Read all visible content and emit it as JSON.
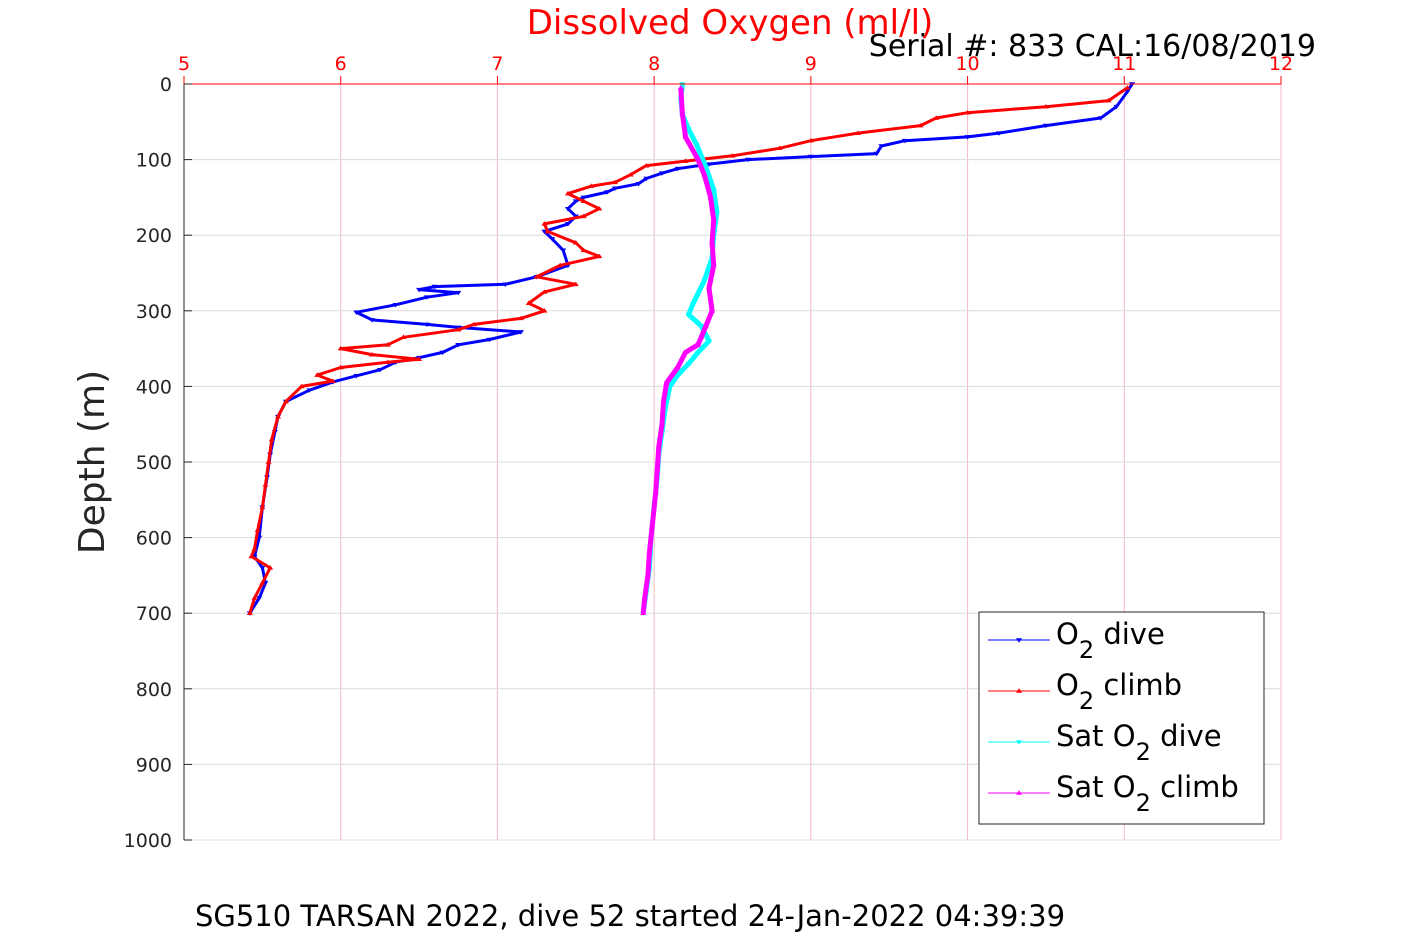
{
  "chart_data": {
    "type": "line",
    "title": "Dissolved Oxygen (ml/l)",
    "serial_text": "Serial #: 833  CAL:16/08/2019",
    "ylabel": "Depth (m)",
    "footer": "SG510 TARSAN 2022, dive 52 started 24-Jan-2022 04:39:39",
    "xlim": [
      5,
      12
    ],
    "ylim": [
      0,
      1000
    ],
    "y_reversed": true,
    "x_axis_position": "top",
    "x_ticks": [
      "5",
      "6",
      "7",
      "8",
      "9",
      "10",
      "11",
      "12"
    ],
    "y_ticks": [
      "0",
      "100",
      "200",
      "300",
      "400",
      "500",
      "600",
      "700",
      "800",
      "900",
      "1000"
    ],
    "grid": true,
    "legend_position": "bottom-right",
    "series": [
      {
        "name": "O2 dive",
        "legend": {
          "prefix": "O",
          "sub": "2",
          "suffix": " dive"
        },
        "color": "#0000ff",
        "marker": "down-triangle",
        "points": [
          [
            11.05,
            0
          ],
          [
            11.02,
            10
          ],
          [
            10.95,
            30
          ],
          [
            10.85,
            45
          ],
          [
            10.5,
            55
          ],
          [
            10.2,
            65
          ],
          [
            10.0,
            70
          ],
          [
            9.6,
            75
          ],
          [
            9.45,
            82
          ],
          [
            9.42,
            92
          ],
          [
            9.0,
            96
          ],
          [
            8.6,
            100
          ],
          [
            8.35,
            106
          ],
          [
            8.15,
            112
          ],
          [
            8.05,
            118
          ],
          [
            7.95,
            125
          ],
          [
            7.9,
            132
          ],
          [
            7.75,
            138
          ],
          [
            7.7,
            143
          ],
          [
            7.55,
            150
          ],
          [
            7.5,
            155
          ],
          [
            7.45,
            165
          ],
          [
            7.5,
            175
          ],
          [
            7.45,
            185
          ],
          [
            7.3,
            195
          ],
          [
            7.35,
            205
          ],
          [
            7.42,
            220
          ],
          [
            7.45,
            240
          ],
          [
            7.25,
            255
          ],
          [
            7.05,
            265
          ],
          [
            6.6,
            268
          ],
          [
            6.5,
            272
          ],
          [
            6.75,
            276
          ],
          [
            6.55,
            282
          ],
          [
            6.35,
            292
          ],
          [
            6.1,
            302
          ],
          [
            6.2,
            312
          ],
          [
            6.55,
            318
          ],
          [
            6.75,
            322
          ],
          [
            7.15,
            328
          ],
          [
            6.95,
            338
          ],
          [
            6.75,
            345
          ],
          [
            6.65,
            355
          ],
          [
            6.5,
            362
          ],
          [
            6.35,
            368
          ],
          [
            6.25,
            378
          ],
          [
            6.1,
            386
          ],
          [
            5.95,
            394
          ],
          [
            5.8,
            405
          ],
          [
            5.65,
            420
          ],
          [
            5.6,
            440
          ],
          [
            5.58,
            460
          ],
          [
            5.55,
            490
          ],
          [
            5.53,
            520
          ],
          [
            5.5,
            560
          ],
          [
            5.48,
            600
          ],
          [
            5.45,
            625
          ],
          [
            5.5,
            640
          ],
          [
            5.52,
            660
          ],
          [
            5.48,
            680
          ],
          [
            5.42,
            700
          ]
        ]
      },
      {
        "name": "O2 climb",
        "legend": {
          "prefix": "O",
          "sub": "2",
          "suffix": " climb"
        },
        "color": "#ff0000",
        "marker": "up-triangle",
        "points": [
          [
            11.02,
            5
          ],
          [
            10.9,
            22
          ],
          [
            10.5,
            30
          ],
          [
            10.0,
            38
          ],
          [
            9.8,
            45
          ],
          [
            9.7,
            55
          ],
          [
            9.3,
            65
          ],
          [
            9.0,
            75
          ],
          [
            8.8,
            85
          ],
          [
            8.5,
            95
          ],
          [
            8.2,
            102
          ],
          [
            7.95,
            108
          ],
          [
            7.85,
            120
          ],
          [
            7.75,
            130
          ],
          [
            7.6,
            135
          ],
          [
            7.45,
            145
          ],
          [
            7.55,
            155
          ],
          [
            7.65,
            165
          ],
          [
            7.55,
            175
          ],
          [
            7.3,
            185
          ],
          [
            7.32,
            195
          ],
          [
            7.5,
            210
          ],
          [
            7.55,
            220
          ],
          [
            7.65,
            228
          ],
          [
            7.4,
            240
          ],
          [
            7.25,
            255
          ],
          [
            7.5,
            265
          ],
          [
            7.3,
            275
          ],
          [
            7.2,
            290
          ],
          [
            7.3,
            300
          ],
          [
            7.15,
            310
          ],
          [
            6.85,
            318
          ],
          [
            6.75,
            325
          ],
          [
            6.4,
            335
          ],
          [
            6.3,
            345
          ],
          [
            6.0,
            350
          ],
          [
            6.2,
            358
          ],
          [
            6.5,
            364
          ],
          [
            6.3,
            368
          ],
          [
            6.0,
            375
          ],
          [
            5.85,
            385
          ],
          [
            5.95,
            393
          ],
          [
            5.75,
            400
          ],
          [
            5.65,
            420
          ],
          [
            5.6,
            440
          ],
          [
            5.56,
            470
          ],
          [
            5.54,
            500
          ],
          [
            5.52,
            530
          ],
          [
            5.5,
            560
          ],
          [
            5.47,
            590
          ],
          [
            5.45,
            615
          ],
          [
            5.43,
            625
          ],
          [
            5.55,
            640
          ],
          [
            5.5,
            660
          ],
          [
            5.45,
            680
          ],
          [
            5.42,
            700
          ]
        ]
      },
      {
        "name": "Sat O2 dive",
        "legend": {
          "prefix": "Sat O",
          "sub": "2",
          "suffix": " dive"
        },
        "color": "#00ffff",
        "marker": "down-triangle",
        "points": [
          [
            8.18,
            0
          ],
          [
            8.17,
            20
          ],
          [
            8.18,
            40
          ],
          [
            8.22,
            60
          ],
          [
            8.27,
            80
          ],
          [
            8.33,
            110
          ],
          [
            8.38,
            140
          ],
          [
            8.4,
            170
          ],
          [
            8.38,
            200
          ],
          [
            8.37,
            230
          ],
          [
            8.32,
            260
          ],
          [
            8.25,
            290
          ],
          [
            8.22,
            305
          ],
          [
            8.3,
            320
          ],
          [
            8.35,
            340
          ],
          [
            8.28,
            355
          ],
          [
            8.22,
            370
          ],
          [
            8.15,
            385
          ],
          [
            8.1,
            400
          ],
          [
            8.07,
            430
          ],
          [
            8.05,
            460
          ],
          [
            8.03,
            490
          ],
          [
            8.02,
            520
          ],
          [
            8.0,
            560
          ],
          [
            7.98,
            600
          ],
          [
            7.97,
            640
          ],
          [
            7.95,
            670
          ],
          [
            7.93,
            700
          ]
        ]
      },
      {
        "name": "Sat O2 climb",
        "legend": {
          "prefix": "Sat O",
          "sub": "2",
          "suffix": " climb"
        },
        "color": "#ff00ff",
        "marker": "up-triangle",
        "points": [
          [
            8.17,
            5
          ],
          [
            8.18,
            40
          ],
          [
            8.2,
            70
          ],
          [
            8.28,
            100
          ],
          [
            8.32,
            120
          ],
          [
            8.36,
            150
          ],
          [
            8.38,
            180
          ],
          [
            8.37,
            210
          ],
          [
            8.38,
            240
          ],
          [
            8.35,
            270
          ],
          [
            8.37,
            300
          ],
          [
            8.33,
            320
          ],
          [
            8.3,
            335
          ],
          [
            8.28,
            345
          ],
          [
            8.2,
            355
          ],
          [
            8.15,
            375
          ],
          [
            8.08,
            395
          ],
          [
            8.06,
            420
          ],
          [
            8.05,
            450
          ],
          [
            8.03,
            480
          ],
          [
            8.02,
            510
          ],
          [
            8.01,
            540
          ],
          [
            7.99,
            580
          ],
          [
            7.97,
            620
          ],
          [
            7.96,
            650
          ],
          [
            7.94,
            680
          ],
          [
            7.93,
            700
          ]
        ]
      }
    ]
  }
}
